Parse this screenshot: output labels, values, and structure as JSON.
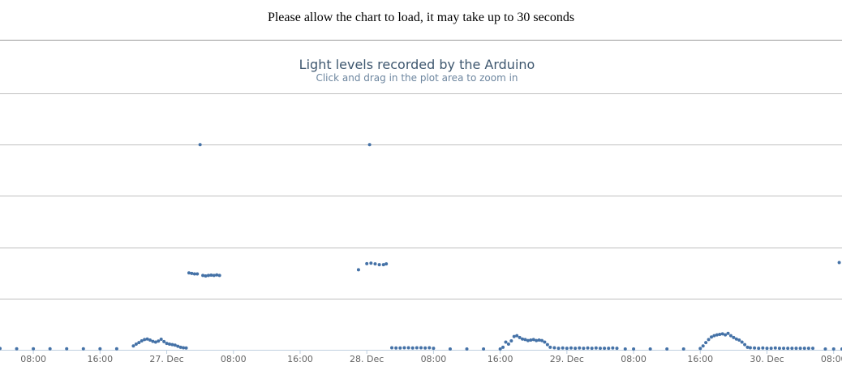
{
  "page": {
    "notice": "Please allow the chart to load, it may take up to 30 seconds"
  },
  "chart_data": {
    "type": "scatter",
    "title": "Light levels recorded by the Arduino",
    "subtitle": "Click and drag in the plot area to zoom in",
    "xlabel": "",
    "ylabel": "",
    "x_axis": {
      "type": "datetime",
      "range": [
        "2013-12-26 04:00",
        "2013-12-30 09:00"
      ],
      "tick_labels": [
        "08:00",
        "16:00",
        "27. Dec",
        "08:00",
        "16:00",
        "28. Dec",
        "08:00",
        "16:00",
        "29. Dec",
        "08:00",
        "16:00",
        "30. Dec",
        "08:00"
      ],
      "tick_values": [
        "2013-12-26 08:00",
        "2013-12-26 16:00",
        "2013-12-27 00:00",
        "2013-12-27 08:00",
        "2013-12-27 16:00",
        "2013-12-28 00:00",
        "2013-12-28 08:00",
        "2013-12-28 16:00",
        "2013-12-29 00:00",
        "2013-12-29 08:00",
        "2013-12-29 16:00",
        "2013-12-30 00:00",
        "2013-12-30 08:00"
      ]
    },
    "y_axis": {
      "range": [
        0,
        1000
      ],
      "gridlines": [
        0,
        200,
        400,
        600,
        800,
        1000
      ],
      "labels_visible": false
    },
    "grid": true,
    "legend": "none",
    "colors": {
      "series": "#4572a7",
      "grid": "#c0c0c0",
      "axis": "#c0d0e0"
    },
    "series": [
      {
        "points": [
          [
            "2013-12-26 04:00",
            5
          ],
          [
            "2013-12-26 06:00",
            4
          ],
          [
            "2013-12-26 08:00",
            4
          ],
          [
            "2013-12-26 10:00",
            4
          ],
          [
            "2013-12-26 12:00",
            4
          ],
          [
            "2013-12-26 14:00",
            4
          ],
          [
            "2013-12-26 16:00",
            4
          ],
          [
            "2013-12-26 18:00",
            4
          ],
          [
            "2013-12-26 20:00",
            15
          ],
          [
            "2013-12-26 20:20",
            22
          ],
          [
            "2013-12-26 20:40",
            28
          ],
          [
            "2013-12-26 21:00",
            35
          ],
          [
            "2013-12-26 21:20",
            40
          ],
          [
            "2013-12-26 21:40",
            42
          ],
          [
            "2013-12-26 22:00",
            38
          ],
          [
            "2013-12-26 22:20",
            33
          ],
          [
            "2013-12-26 22:40",
            30
          ],
          [
            "2013-12-26 23:00",
            34
          ],
          [
            "2013-12-26 23:20",
            41
          ],
          [
            "2013-12-26 23:40",
            32
          ],
          [
            "2013-12-27 00:00",
            25
          ],
          [
            "2013-12-27 00:20",
            22
          ],
          [
            "2013-12-27 00:40",
            20
          ],
          [
            "2013-12-27 01:00",
            18
          ],
          [
            "2013-12-27 01:20",
            14
          ],
          [
            "2013-12-27 01:40",
            10
          ],
          [
            "2013-12-27 02:00",
            8
          ],
          [
            "2013-12-27 02:20",
            7
          ],
          [
            "2013-12-27 02:40",
            300
          ],
          [
            "2013-12-27 03:00",
            298
          ],
          [
            "2013-12-27 03:20",
            296
          ],
          [
            "2013-12-27 03:40",
            296
          ],
          [
            "2013-12-27 04:00",
            800
          ],
          [
            "2013-12-27 04:20",
            290
          ],
          [
            "2013-12-27 04:40",
            288
          ],
          [
            "2013-12-27 05:00",
            290
          ],
          [
            "2013-12-27 05:20",
            291
          ],
          [
            "2013-12-27 05:40",
            290
          ],
          [
            "2013-12-27 06:00",
            292
          ],
          [
            "2013-12-27 06:20",
            290
          ],
          [
            "2013-12-27 23:00",
            312
          ],
          [
            "2013-12-28 00:20",
            800
          ],
          [
            "2013-12-28 00:00",
            336
          ],
          [
            "2013-12-28 00:30",
            338
          ],
          [
            "2013-12-28 01:00",
            335
          ],
          [
            "2013-12-28 01:30",
            332
          ],
          [
            "2013-12-28 02:00",
            332
          ],
          [
            "2013-12-28 02:20",
            335
          ],
          [
            "2013-12-28 03:00",
            8
          ],
          [
            "2013-12-28 03:30",
            7
          ],
          [
            "2013-12-28 04:00",
            7
          ],
          [
            "2013-12-28 04:30",
            8
          ],
          [
            "2013-12-28 05:00",
            8
          ],
          [
            "2013-12-28 05:30",
            7
          ],
          [
            "2013-12-28 06:00",
            8
          ],
          [
            "2013-12-28 06:30",
            8
          ],
          [
            "2013-12-28 07:00",
            7
          ],
          [
            "2013-12-28 07:30",
            8
          ],
          [
            "2013-12-28 08:00",
            6
          ],
          [
            "2013-12-28 10:00",
            3
          ],
          [
            "2013-12-28 12:00",
            3
          ],
          [
            "2013-12-28 14:00",
            3
          ],
          [
            "2013-12-28 16:00",
            3
          ],
          [
            "2013-12-28 16:20",
            10
          ],
          [
            "2013-12-28 16:40",
            30
          ],
          [
            "2013-12-28 17:00",
            22
          ],
          [
            "2013-12-28 17:20",
            35
          ],
          [
            "2013-12-28 17:40",
            52
          ],
          [
            "2013-12-28 18:00",
            55
          ],
          [
            "2013-12-28 18:20",
            48
          ],
          [
            "2013-12-28 18:40",
            42
          ],
          [
            "2013-12-28 19:00",
            40
          ],
          [
            "2013-12-28 19:20",
            36
          ],
          [
            "2013-12-28 19:40",
            38
          ],
          [
            "2013-12-28 20:00",
            40
          ],
          [
            "2013-12-28 20:20",
            36
          ],
          [
            "2013-12-28 20:40",
            38
          ],
          [
            "2013-12-28 21:00",
            36
          ],
          [
            "2013-12-28 21:20",
            30
          ],
          [
            "2013-12-28 21:40",
            20
          ],
          [
            "2013-12-28 22:00",
            10
          ],
          [
            "2013-12-28 22:30",
            8
          ],
          [
            "2013-12-28 23:00",
            6
          ],
          [
            "2013-12-28 23:30",
            7
          ],
          [
            "2013-12-29 00:00",
            6
          ],
          [
            "2013-12-29 00:30",
            7
          ],
          [
            "2013-12-29 01:00",
            6
          ],
          [
            "2013-12-29 01:30",
            7
          ],
          [
            "2013-12-29 02:00",
            6
          ],
          [
            "2013-12-29 02:30",
            7
          ],
          [
            "2013-12-29 03:00",
            6
          ],
          [
            "2013-12-29 03:30",
            7
          ],
          [
            "2013-12-29 04:00",
            6
          ],
          [
            "2013-12-29 04:30",
            6
          ],
          [
            "2013-12-29 05:00",
            6
          ],
          [
            "2013-12-29 05:30",
            7
          ],
          [
            "2013-12-29 06:00",
            6
          ],
          [
            "2013-12-29 07:00",
            3
          ],
          [
            "2013-12-29 08:00",
            3
          ],
          [
            "2013-12-29 10:00",
            3
          ],
          [
            "2013-12-29 12:00",
            3
          ],
          [
            "2013-12-29 14:00",
            3
          ],
          [
            "2013-12-29 16:00",
            5
          ],
          [
            "2013-12-29 16:20",
            15
          ],
          [
            "2013-12-29 16:40",
            28
          ],
          [
            "2013-12-29 17:00",
            40
          ],
          [
            "2013-12-29 17:20",
            50
          ],
          [
            "2013-12-29 17:40",
            55
          ],
          [
            "2013-12-29 18:00",
            58
          ],
          [
            "2013-12-29 18:20",
            60
          ],
          [
            "2013-12-29 18:40",
            62
          ],
          [
            "2013-12-29 19:00",
            58
          ],
          [
            "2013-12-29 19:20",
            64
          ],
          [
            "2013-12-29 19:40",
            55
          ],
          [
            "2013-12-29 20:00",
            48
          ],
          [
            "2013-12-29 20:20",
            42
          ],
          [
            "2013-12-29 20:40",
            38
          ],
          [
            "2013-12-29 21:00",
            30
          ],
          [
            "2013-12-29 21:20",
            20
          ],
          [
            "2013-12-29 21:40",
            10
          ],
          [
            "2013-12-29 22:00",
            8
          ],
          [
            "2013-12-29 22:30",
            7
          ],
          [
            "2013-12-29 23:00",
            6
          ],
          [
            "2013-12-29 23:30",
            7
          ],
          [
            "2013-12-30 00:00",
            6
          ],
          [
            "2013-12-30 00:30",
            6
          ],
          [
            "2013-12-30 01:00",
            7
          ],
          [
            "2013-12-30 01:30",
            6
          ],
          [
            "2013-12-30 02:00",
            6
          ],
          [
            "2013-12-30 02:30",
            6
          ],
          [
            "2013-12-30 03:00",
            6
          ],
          [
            "2013-12-30 03:30",
            6
          ],
          [
            "2013-12-30 04:00",
            6
          ],
          [
            "2013-12-30 04:30",
            6
          ],
          [
            "2013-12-30 05:00",
            6
          ],
          [
            "2013-12-30 05:30",
            6
          ],
          [
            "2013-12-30 07:00",
            3
          ],
          [
            "2013-12-30 08:00",
            3
          ],
          [
            "2013-12-30 08:40",
            340
          ],
          [
            "2013-12-30 09:00",
            3
          ]
        ]
      }
    ]
  }
}
